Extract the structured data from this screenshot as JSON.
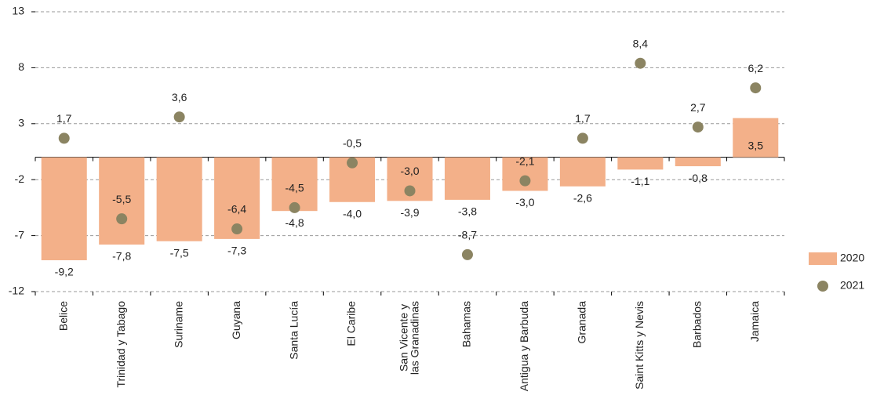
{
  "chart_data": {
    "type": "bar",
    "categories": [
      "Belice",
      "Trinidad y Tabago",
      "Suriname",
      "Guyana",
      "Santa Lucía",
      "El Caribe",
      "San Vicente y las Granadinas",
      "Bahamas",
      "Antigua y Barbuda",
      "Granada",
      "Saint Kitts y Nevis",
      "Barbados",
      "Jamaica"
    ],
    "series": [
      {
        "name": "2020",
        "type": "bar",
        "color": "#f3b089",
        "values": [
          -9.2,
          -7.8,
          -7.5,
          -7.3,
          -4.8,
          -4.0,
          -3.9,
          -3.8,
          -3.0,
          -2.6,
          -1.1,
          -0.8,
          3.5
        ],
        "value_labels": [
          "-9,2",
          "-7,8",
          "-7,5",
          "-7,3",
          "-4,8",
          "-4,0",
          "-3,9",
          "-3,8",
          "-3,0",
          "-2,6",
          "-1,1",
          "-0,8",
          "3,5"
        ]
      },
      {
        "name": "2021",
        "type": "scatter",
        "color": "#8b8462",
        "values": [
          1.7,
          -5.5,
          3.6,
          -6.4,
          -4.5,
          -0.5,
          -3.0,
          -8.7,
          -2.1,
          1.7,
          8.4,
          2.7,
          6.2
        ],
        "value_labels": [
          "1,7",
          "-5,5",
          "3,6",
          "-6,4",
          "-4,5",
          "-0,5",
          "-3,0",
          "-8,7",
          "-2,1",
          "1,7",
          "8,4",
          "2,7",
          "6,2"
        ]
      }
    ],
    "ylim": [
      -12,
      13
    ],
    "yticks": [
      13,
      8,
      3,
      -2,
      -7,
      -12
    ],
    "grid": true,
    "legend": "right"
  }
}
